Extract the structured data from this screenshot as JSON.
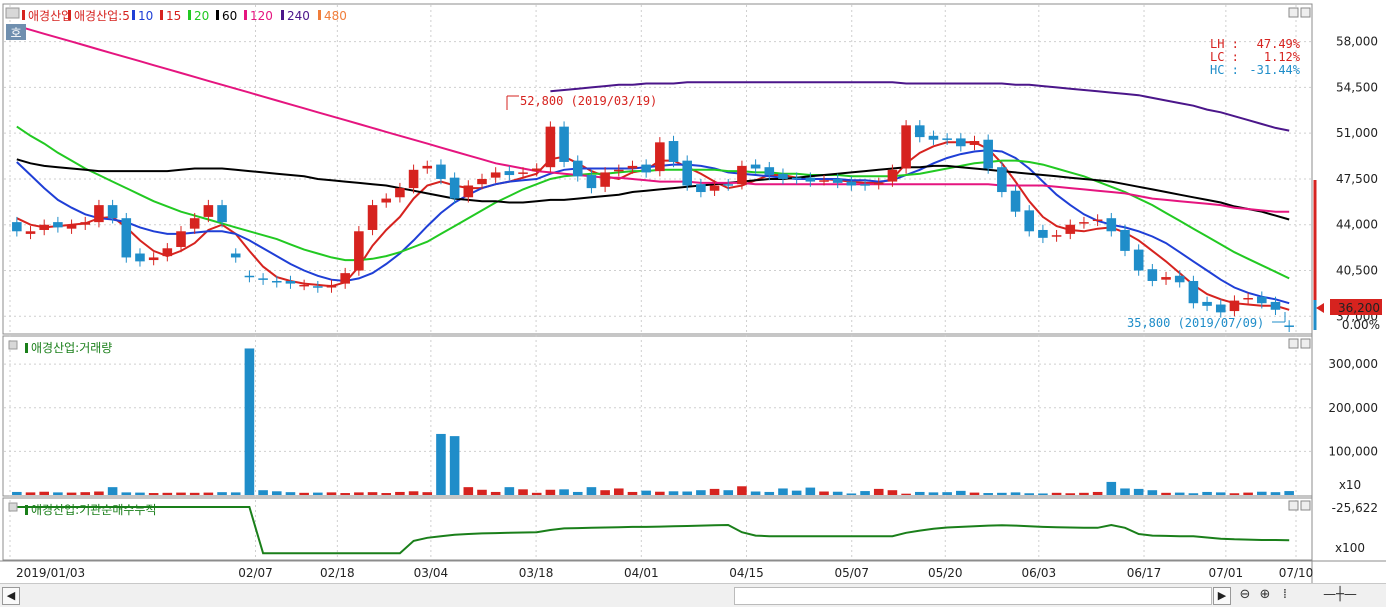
{
  "price_panel": {
    "legend": [
      {
        "text": "애경산업",
        "color": "#d6231f"
      },
      {
        "text": "애경산업:5",
        "color": "#d6231f"
      },
      {
        "text": "10",
        "color": "#1f3fd6"
      },
      {
        "text": "15",
        "color": "#d6231f"
      },
      {
        "text": "20",
        "color": "#22c922"
      },
      {
        "text": "60",
        "color": "#000000"
      },
      {
        "text": "120",
        "color": "#e5157f"
      },
      {
        "text": "240",
        "color": "#4b168a"
      },
      {
        "text": "480",
        "color": "#f07d3a"
      }
    ],
    "badge": "호",
    "stats": [
      {
        "label": "LH :",
        "value": "47.49%",
        "color": "#d6231f"
      },
      {
        "label": "LC :",
        "value": "1.12%",
        "color": "#d6231f"
      },
      {
        "label": "HC :",
        "value": "-31.44%",
        "color": "#1f8dc9"
      }
    ],
    "yticks": [
      "58,000",
      "54,500",
      "51,000",
      "47,500",
      "44,000",
      "40,500",
      "37,000"
    ],
    "annotation_high": "52,800 (2019/03/19)",
    "annotation_low": "35,800 (2019/07/09)",
    "current_price": "36,200",
    "current_change": "0.00%"
  },
  "volume_panel": {
    "legend": "애경산업:거래량",
    "yticks": [
      "300,000",
      "200,000",
      "100,000"
    ],
    "unit": "x10"
  },
  "inst_panel": {
    "legend": "애경산업:기관순매수누적",
    "ytick": "-25,622",
    "unit": "x100"
  },
  "xaxis": [
    "2019/01/03",
    "02/07",
    "02/18",
    "03/04",
    "03/18",
    "04/01",
    "04/15",
    "05/07",
    "05/20",
    "06/03",
    "06/17",
    "07/01",
    "07/10"
  ],
  "chart_data": {
    "type": "candlestick",
    "dates_shown": [
      "2019/01/03",
      "02/07",
      "02/18",
      "03/04",
      "03/18",
      "04/01",
      "04/15",
      "05/07",
      "05/20",
      "06/03",
      "06/17",
      "07/01",
      "07/10"
    ],
    "price": {
      "close": [
        43500,
        43500,
        44000,
        43800,
        44000,
        44200,
        45500,
        44500,
        41500,
        41200,
        41500,
        42200,
        43500,
        44500,
        45500,
        44200,
        41500,
        40000,
        39800,
        39600,
        39500,
        39400,
        39200,
        39400,
        40300,
        43500,
        45500,
        46000,
        46800,
        48200,
        48500,
        47500,
        46000,
        47000,
        47500,
        48000,
        47800,
        48000,
        48300,
        51500,
        48800,
        47700,
        46800,
        48000,
        48200,
        48500,
        48000,
        50300,
        48800,
        47000,
        46500,
        47000,
        47000,
        48500,
        48300,
        47800,
        47500,
        47500,
        47300,
        47400,
        47200,
        47000,
        47000,
        47200,
        48200,
        51600,
        50700,
        50500,
        50500,
        50000,
        50400,
        48300,
        46500,
        45000,
        43500,
        43000,
        43200,
        44000,
        44200,
        44400,
        43500,
        42000,
        40500,
        39700,
        40000,
        39600,
        38000,
        37800,
        37300,
        38200,
        38400,
        38000,
        37500,
        36200
      ],
      "open": [
        44200,
        43300,
        43600,
        44200,
        43700,
        44000,
        44200,
        45500,
        44500,
        41800,
        41300,
        41600,
        42300,
        43700,
        44600,
        45500,
        41800,
        40100,
        39900,
        39700,
        39700,
        39400,
        39300,
        39200,
        39500,
        40500,
        43600,
        45700,
        46100,
        46800,
        48300,
        48600,
        47600,
        46100,
        47100,
        47600,
        48100,
        47900,
        48100,
        48400,
        51500,
        48900,
        47800,
        46900,
        48100,
        48300,
        48600,
        48100,
        50400,
        48900,
        47100,
        46600,
        47100,
        47100,
        48600,
        48400,
        47900,
        47600,
        47600,
        47400,
        47500,
        47300,
        47100,
        47100,
        47300,
        48300,
        51600,
        50800,
        50600,
        50600,
        50100,
        50500,
        48400,
        46600,
        45100,
        43600,
        43100,
        43300,
        44100,
        44300,
        44500,
        43600,
        42100,
        40600,
        39800,
        40100,
        39700,
        38100,
        37900,
        37400,
        38300,
        38500,
        38100,
        36300
      ],
      "high": 52800,
      "low": 35800,
      "last": 36200,
      "change_pct": 0.0,
      "LH_pct": 47.49,
      "LC_pct": 1.12,
      "HC_pct": -31.44,
      "ylim": [
        35800,
        59500
      ]
    },
    "moving_averages": [
      {
        "name": "5",
        "color": "#d6231f",
        "values": [
          44500,
          44000,
          43800,
          43900,
          44000,
          44100,
          44500,
          44600,
          43800,
          42800,
          42000,
          41600,
          42000,
          42600,
          43600,
          44000,
          43300,
          42000,
          40800,
          40000,
          39700,
          39500,
          39400,
          39300,
          39600,
          40800,
          42400,
          43600,
          44600,
          46000,
          47000,
          47300,
          47000,
          46800,
          46800,
          47100,
          47300,
          47600,
          47900,
          49000,
          49200,
          48700,
          48100,
          47700,
          47500,
          48000,
          48200,
          48900,
          48900,
          48400,
          47900,
          47300,
          46800,
          47000,
          47400,
          47800,
          47800,
          47600,
          47500,
          47500,
          47400,
          47300,
          47200,
          47200,
          47500,
          48700,
          49500,
          50000,
          50300,
          50300,
          50300,
          49800,
          48700,
          47300,
          45800,
          44600,
          43900,
          43600,
          43500,
          43700,
          43800,
          43400,
          42800,
          42000,
          41200,
          40300,
          39400,
          38700,
          38300,
          38000,
          37900,
          37800,
          37800,
          37500
        ]
      },
      {
        "name": "10",
        "color": "#1f3fd6",
        "values": [
          48800,
          47800,
          46800,
          45900,
          45300,
          44800,
          44500,
          44400,
          44200,
          43800,
          43500,
          43300,
          43300,
          43400,
          43500,
          43500,
          43300,
          42800,
          42200,
          41600,
          41000,
          40500,
          40100,
          39800,
          39700,
          39900,
          40300,
          41000,
          41800,
          42800,
          43900,
          44900,
          45700,
          46300,
          46800,
          47100,
          47300,
          47400,
          47500,
          47900,
          48200,
          48300,
          48300,
          48300,
          48300,
          48300,
          48400,
          48500,
          48600,
          48600,
          48500,
          48300,
          48000,
          47900,
          47800,
          47700,
          47600,
          47500,
          47500,
          47500,
          47500,
          47400,
          47400,
          47300,
          47400,
          47800,
          48200,
          48700,
          49100,
          49400,
          49600,
          49700,
          49600,
          49100,
          48300,
          47300,
          46300,
          45500,
          44800,
          44300,
          44000,
          43800,
          43500,
          43100,
          42600,
          41900,
          41200,
          40500,
          39800,
          39200,
          38800,
          38500,
          38300,
          38000
        ]
      },
      {
        "name": "20",
        "color": "#22c922",
        "values": [
          51500,
          50800,
          50200,
          49500,
          48900,
          48300,
          47800,
          47300,
          46800,
          46300,
          45800,
          45400,
          45000,
          44700,
          44400,
          44100,
          43800,
          43500,
          43200,
          42900,
          42500,
          42100,
          41800,
          41500,
          41300,
          41300,
          41400,
          41600,
          41900,
          42300,
          42700,
          43300,
          43900,
          44500,
          45100,
          45700,
          46200,
          46700,
          47100,
          47500,
          47700,
          47800,
          47900,
          47900,
          48000,
          48100,
          48100,
          48200,
          48200,
          48200,
          48200,
          48200,
          48100,
          48100,
          48000,
          48000,
          47900,
          47900,
          47800,
          47800,
          47800,
          47700,
          47700,
          47700,
          47700,
          47800,
          47900,
          48100,
          48300,
          48500,
          48700,
          48800,
          48900,
          48900,
          48800,
          48600,
          48300,
          48000,
          47700,
          47300,
          46900,
          46500,
          46000,
          45500,
          44900,
          44300,
          43700,
          43100,
          42500,
          41900,
          41400,
          40900,
          40400,
          39900
        ]
      },
      {
        "name": "60",
        "color": "#000000",
        "values": [
          49000,
          48700,
          48500,
          48400,
          48300,
          48200,
          48100,
          48100,
          48100,
          48100,
          48100,
          48100,
          48200,
          48300,
          48300,
          48300,
          48200,
          48100,
          48000,
          47900,
          47800,
          47700,
          47500,
          47400,
          47300,
          47200,
          47100,
          47000,
          46800,
          46600,
          46400,
          46200,
          46000,
          45900,
          45800,
          45800,
          45700,
          45700,
          45800,
          45900,
          45900,
          46000,
          46100,
          46200,
          46300,
          46500,
          46600,
          46700,
          46800,
          46900,
          47000,
          47100,
          47200,
          47300,
          47400,
          47500,
          47500,
          47600,
          47700,
          47800,
          47900,
          48000,
          48100,
          48200,
          48300,
          48400,
          48400,
          48500,
          48500,
          48400,
          48300,
          48200,
          48100,
          48000,
          47900,
          47800,
          47700,
          47600,
          47500,
          47400,
          47300,
          47100,
          46900,
          46700,
          46500,
          46300,
          46100,
          45900,
          45700,
          45400,
          45200,
          45000,
          44700,
          44400
        ]
      },
      {
        "name": "120",
        "color": "#e5157f",
        "values": [
          59200,
          58900,
          58600,
          58300,
          58000,
          57700,
          57400,
          57100,
          56800,
          56500,
          56200,
          55900,
          55600,
          55300,
          55000,
          54700,
          54400,
          54100,
          53800,
          53500,
          53200,
          52900,
          52600,
          52300,
          52000,
          51700,
          51400,
          51100,
          50800,
          50500,
          50200,
          49900,
          49600,
          49300,
          49000,
          48700,
          48500,
          48300,
          48100,
          48000,
          47900,
          47800,
          47700,
          47600,
          47600,
          47500,
          47400,
          47300,
          47300,
          47300,
          47200,
          47200,
          47200,
          47200,
          47100,
          47100,
          47100,
          47100,
          47100,
          47100,
          47100,
          47100,
          47100,
          47100,
          47100,
          47100,
          47100,
          47100,
          47100,
          47100,
          47100,
          47100,
          47000,
          47000,
          47000,
          47000,
          46900,
          46800,
          46700,
          46600,
          46500,
          46400,
          46200,
          46000,
          45900,
          45800,
          45700,
          45600,
          45500,
          45300,
          45200,
          45100,
          45000,
          45000
        ]
      },
      {
        "name": "240",
        "color": "#4b168a",
        "values": [
          null,
          null,
          null,
          null,
          null,
          null,
          null,
          null,
          null,
          null,
          null,
          null,
          null,
          null,
          null,
          null,
          null,
          null,
          null,
          null,
          null,
          null,
          null,
          null,
          null,
          null,
          null,
          null,
          null,
          null,
          null,
          null,
          null,
          null,
          null,
          null,
          null,
          null,
          null,
          54200,
          54300,
          54400,
          54500,
          54600,
          54700,
          54700,
          54800,
          54800,
          54800,
          54900,
          54900,
          54900,
          54900,
          54900,
          54900,
          54900,
          54900,
          54900,
          54900,
          54900,
          54900,
          54900,
          54900,
          54900,
          54900,
          54800,
          54800,
          54800,
          54800,
          54800,
          54800,
          54800,
          54800,
          54700,
          54700,
          54600,
          54500,
          54400,
          54300,
          54200,
          54100,
          54000,
          53900,
          53700,
          53500,
          53300,
          53100,
          52800,
          52600,
          52300,
          52000,
          51700,
          51400,
          51200
        ]
      }
    ],
    "volume": [
      7000,
      6000,
      7500,
      6000,
      5500,
      6500,
      8000,
      18000,
      6000,
      5500,
      4500,
      5000,
      5500,
      5000,
      5500,
      6500,
      6000,
      336000,
      11000,
      8500,
      6500,
      5000,
      5500,
      6000,
      4500,
      6000,
      6500,
      4500,
      7000,
      8500,
      6500,
      140000,
      135000,
      18000,
      12000,
      7000,
      18000,
      13000,
      5000,
      12000,
      13000,
      7000,
      18000,
      11000,
      15000,
      7000,
      10000,
      7500,
      8500,
      8000,
      11000,
      14000,
      11000,
      20000,
      8000,
      7000,
      15000,
      10000,
      17000,
      8000,
      7500,
      3500,
      9000,
      14000,
      11000,
      3000,
      7000,
      6000,
      6500,
      9500,
      5500,
      4500,
      5000,
      6000,
      4000,
      3500,
      5000,
      4000,
      5000,
      7000,
      30000,
      15000,
      14000,
      11000,
      5000,
      5500,
      4000,
      7000,
      6000,
      4000,
      5500,
      7500,
      6500,
      9000
    ],
    "volume_ylim": [
      0,
      336000
    ],
    "inst_cumulative": [
      -25622,
      -25622,
      -25622,
      -25622,
      -25622,
      -25622,
      -25622,
      -25622,
      -25622,
      -25622,
      -25622,
      -25622,
      -25622,
      -25622,
      -25622,
      -25622,
      -25622,
      -25622,
      -40500,
      -40500,
      -40500,
      -40500,
      -40500,
      -40500,
      -40500,
      -40500,
      -40500,
      -40500,
      -40500,
      -36500,
      -35500,
      -35000,
      -34500,
      -34300,
      -34100,
      -34000,
      -33900,
      -33800,
      -33700,
      -33000,
      -32500,
      -32400,
      -32300,
      -32200,
      -32100,
      -32000,
      -32000,
      -31900,
      -31800,
      -31700,
      -31600,
      -31500,
      -31400,
      -33700,
      -34800,
      -35000,
      -35000,
      -35000,
      -35000,
      -35000,
      -35000,
      -35000,
      -35000,
      -35000,
      -35000,
      -33900,
      -33200,
      -32600,
      -32200,
      -32000,
      -31800,
      -31600,
      -31500,
      -31600,
      -31800,
      -32000,
      -32100,
      -32200,
      -32300,
      -32300,
      -31400,
      -32300,
      -34300,
      -34800,
      -34900,
      -35000,
      -35000,
      -35400,
      -35800,
      -36000,
      -36100,
      -36200,
      -36200,
      -36300
    ]
  }
}
